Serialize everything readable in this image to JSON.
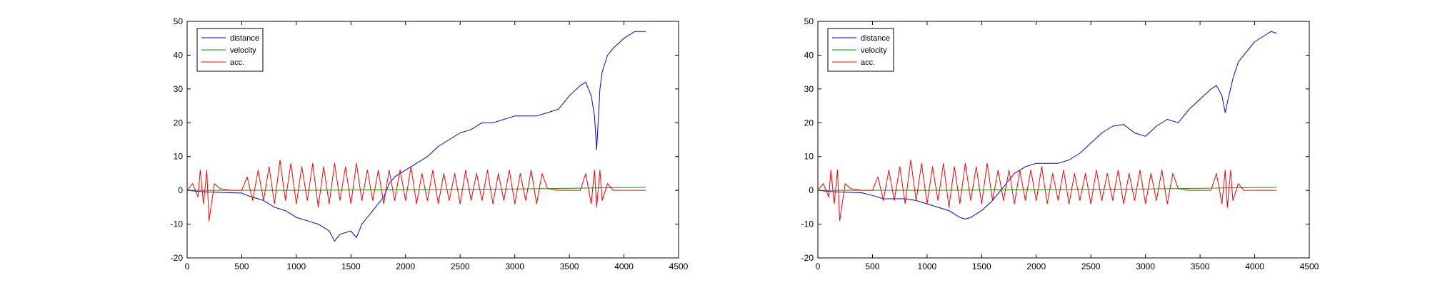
{
  "chart_data": [
    {
      "type": "line",
      "title": "",
      "xlabel": "",
      "ylabel": "",
      "xlim": [
        0,
        4500
      ],
      "ylim": [
        -20,
        50
      ],
      "xticks": [
        0,
        500,
        1000,
        1500,
        2000,
        2500,
        3000,
        3500,
        4000,
        4500
      ],
      "yticks": [
        -20,
        -10,
        0,
        10,
        20,
        30,
        40,
        50
      ],
      "grid": false,
      "legend_position": "top-left",
      "series": [
        {
          "name": "distance",
          "color": "#0000ff",
          "x": [
            0,
            100,
            200,
            300,
            400,
            500,
            550,
            600,
            700,
            800,
            900,
            1000,
            1100,
            1200,
            1300,
            1350,
            1400,
            1500,
            1550,
            1600,
            1700,
            1800,
            1850,
            1900,
            2000,
            2100,
            2200,
            2300,
            2400,
            2500,
            2600,
            2700,
            2800,
            2900,
            3000,
            3100,
            3200,
            3300,
            3400,
            3500,
            3600,
            3650,
            3700,
            3730,
            3750,
            3780,
            3800,
            3850,
            3900,
            4000,
            4100,
            4200
          ],
          "y": [
            0,
            -0.3,
            -0.5,
            -0.6,
            -0.7,
            -0.8,
            -1.5,
            -2,
            -3,
            -5,
            -6,
            -8,
            -9,
            -10,
            -12,
            -15,
            -13,
            -12,
            -14,
            -10,
            -6,
            -2,
            2,
            4,
            6,
            8,
            10,
            13,
            15,
            17,
            18,
            20,
            20,
            21,
            22,
            22,
            22,
            23,
            24,
            28,
            31,
            32,
            28,
            22,
            12,
            30,
            35,
            40,
            42,
            45,
            47,
            47
          ]
        },
        {
          "name": "velocity",
          "color": "#00a000",
          "x": [
            0,
            500,
            1000,
            1500,
            2000,
            2500,
            3000,
            3500,
            4000,
            4200
          ],
          "y": [
            0,
            0,
            0,
            0.1,
            0.2,
            0.3,
            0.4,
            0.6,
            0.8,
            0.9
          ]
        },
        {
          "name": "acc.",
          "color": "#ff0000",
          "x": [
            0,
            50,
            100,
            120,
            150,
            180,
            200,
            250,
            300,
            400,
            500,
            550,
            600,
            650,
            700,
            750,
            800,
            850,
            900,
            950,
            1000,
            1050,
            1100,
            1150,
            1200,
            1250,
            1300,
            1350,
            1400,
            1450,
            1500,
            1550,
            1600,
            1650,
            1700,
            1750,
            1800,
            1850,
            1900,
            1950,
            2000,
            2050,
            2100,
            2150,
            2200,
            2250,
            2300,
            2350,
            2400,
            2450,
            2500,
            2550,
            2600,
            2650,
            2700,
            2750,
            2800,
            2850,
            2900,
            2950,
            3000,
            3050,
            3100,
            3150,
            3200,
            3250,
            3300,
            3400,
            3500,
            3600,
            3650,
            3700,
            3730,
            3750,
            3780,
            3800,
            3850,
            3900,
            4000,
            4100,
            4200
          ],
          "y": [
            0,
            2,
            -2,
            6,
            -4,
            6,
            -9,
            2,
            0.5,
            0,
            0,
            4,
            -3,
            6,
            -3,
            7,
            -4,
            9,
            -3,
            8,
            -4,
            7,
            -3,
            8,
            -5,
            7,
            -4,
            8,
            -3,
            7,
            -4,
            8,
            -3,
            6,
            -3,
            6,
            -4,
            6,
            -3,
            6,
            -3,
            7,
            -4,
            5,
            -3,
            6,
            -4,
            5,
            -3,
            5,
            -4,
            6,
            -3,
            5,
            -3,
            6,
            -4,
            5,
            -3,
            6,
            -4,
            5,
            -3,
            6,
            -4,
            5,
            0.5,
            0,
            0,
            0,
            5,
            -4,
            6,
            -5,
            6,
            -3,
            2,
            0,
            0,
            0,
            0
          ]
        }
      ]
    },
    {
      "type": "line",
      "title": "",
      "xlabel": "",
      "ylabel": "",
      "xlim": [
        0,
        4500
      ],
      "ylim": [
        -20,
        50
      ],
      "xticks": [
        0,
        500,
        1000,
        1500,
        2000,
        2500,
        3000,
        3500,
        4000,
        4500
      ],
      "yticks": [
        -20,
        -10,
        0,
        10,
        20,
        30,
        40,
        50
      ],
      "grid": false,
      "legend_position": "top-left",
      "series": [
        {
          "name": "distance",
          "color": "#0000ff",
          "x": [
            0,
            100,
            200,
            300,
            400,
            500,
            600,
            700,
            800,
            900,
            1000,
            1100,
            1200,
            1300,
            1350,
            1400,
            1500,
            1600,
            1700,
            1800,
            1900,
            2000,
            2100,
            2200,
            2300,
            2400,
            2500,
            2600,
            2700,
            2800,
            2900,
            3000,
            3100,
            3200,
            3300,
            3400,
            3500,
            3600,
            3650,
            3700,
            3730,
            3750,
            3800,
            3850,
            3900,
            4000,
            4100,
            4150,
            4200
          ],
          "y": [
            0,
            -0.3,
            -0.5,
            -0.6,
            -0.7,
            -1.5,
            -2.5,
            -2.5,
            -2.5,
            -3,
            -4,
            -5,
            -6,
            -8,
            -8.5,
            -8,
            -6,
            -3,
            1,
            5,
            7,
            8,
            8,
            8,
            9,
            11,
            14,
            17,
            19,
            19.5,
            17,
            16,
            19,
            21,
            20,
            24,
            27,
            30,
            31,
            28,
            23,
            26,
            33,
            38,
            40,
            44,
            46,
            47,
            46.5
          ]
        },
        {
          "name": "velocity",
          "color": "#00a000",
          "x": [
            0,
            500,
            1000,
            1500,
            2000,
            2500,
            3000,
            3500,
            4000,
            4200
          ],
          "y": [
            0,
            0,
            0,
            0.1,
            0.2,
            0.3,
            0.4,
            0.6,
            0.8,
            0.9
          ]
        },
        {
          "name": "acc.",
          "color": "#ff0000",
          "x": [
            0,
            50,
            100,
            120,
            150,
            180,
            200,
            250,
            300,
            400,
            500,
            550,
            600,
            650,
            700,
            750,
            800,
            850,
            900,
            950,
            1000,
            1050,
            1100,
            1150,
            1200,
            1250,
            1300,
            1350,
            1400,
            1450,
            1500,
            1550,
            1600,
            1650,
            1700,
            1750,
            1800,
            1850,
            1900,
            1950,
            2000,
            2050,
            2100,
            2150,
            2200,
            2250,
            2300,
            2350,
            2400,
            2450,
            2500,
            2550,
            2600,
            2650,
            2700,
            2750,
            2800,
            2850,
            2900,
            2950,
            3000,
            3050,
            3100,
            3150,
            3200,
            3250,
            3300,
            3400,
            3500,
            3600,
            3650,
            3700,
            3730,
            3750,
            3780,
            3800,
            3850,
            3900,
            4000,
            4100,
            4200
          ],
          "y": [
            0,
            2,
            -2,
            6,
            -4,
            6,
            -9,
            2,
            0.5,
            0,
            0,
            4,
            -3,
            6,
            -3,
            7,
            -4,
            9,
            -3,
            8,
            -4,
            7,
            -3,
            8,
            -5,
            7,
            -4,
            8,
            -3,
            7,
            -4,
            8,
            -3,
            6,
            -3,
            6,
            -4,
            6,
            -3,
            6,
            -3,
            7,
            -4,
            5,
            -3,
            6,
            -4,
            5,
            -3,
            5,
            -4,
            6,
            -3,
            5,
            -3,
            6,
            -4,
            5,
            -3,
            6,
            -4,
            5,
            -3,
            6,
            -4,
            5,
            0.5,
            0,
            0,
            0,
            5,
            -4,
            6,
            -5,
            6,
            -3,
            2,
            0,
            0,
            0,
            0
          ]
        }
      ]
    }
  ]
}
